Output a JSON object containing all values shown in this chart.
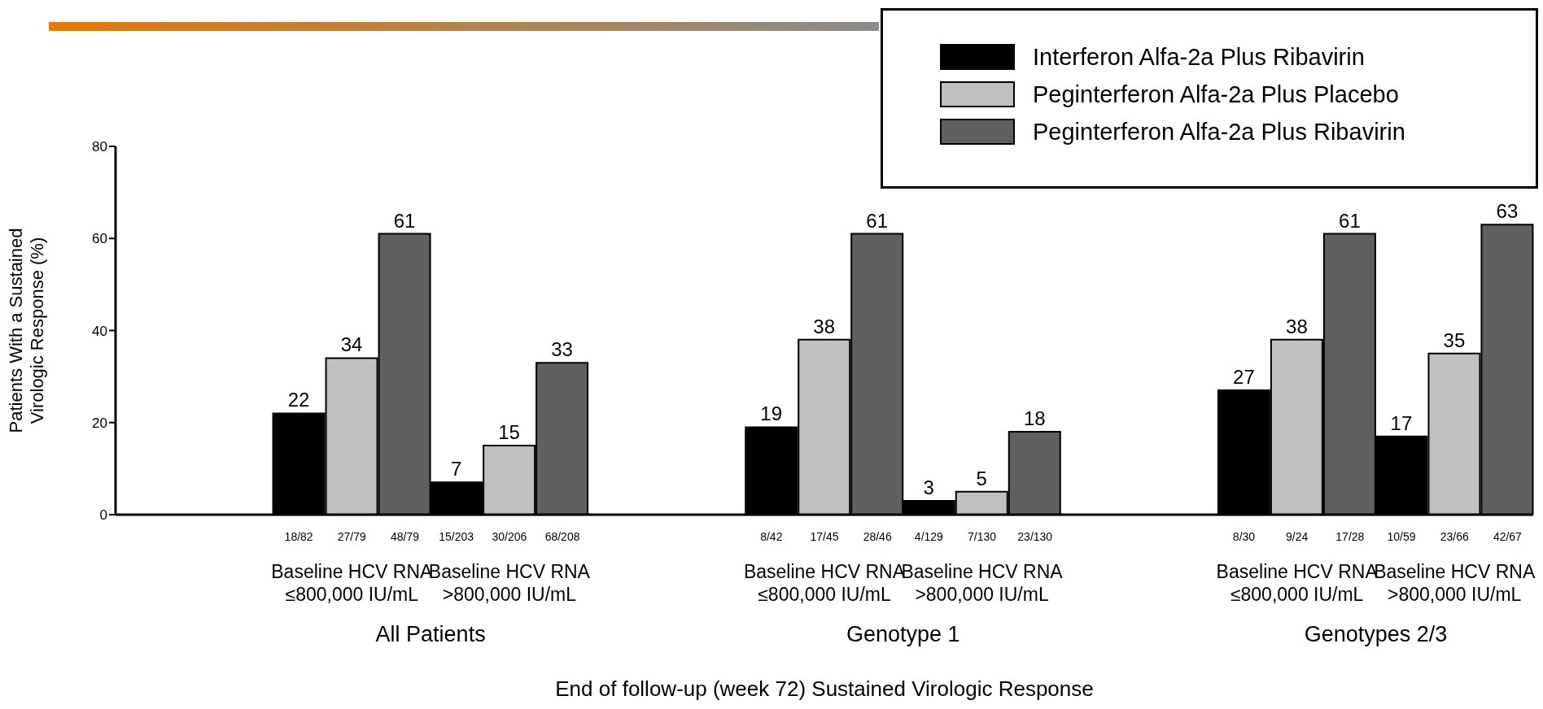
{
  "chart_data": {
    "type": "bar",
    "xlabel": "End of follow-up (week 72) Sustained Virologic Response",
    "ylabel": "Patients With a Sustained\nVirologic Response (%)",
    "categories": [
      null,
      "Baseline HCV RNA\n≤800,000 IU/mL",
      "Baseline HCV RNA\n>800,000 IU/mL",
      null,
      "Baseline HCV RNA\n≤800,000 IU/mL",
      "Baseline HCV RNA\n>800,000 IU/mL",
      null,
      "Baseline HCV RNA\n≤800,000 IU/mL",
      "Baseline HCV RNA\n>800,000 IU/mL"
    ],
    "series": [
      {
        "name": "Interferon Alfa-2a Plus Ribavirin",
        "color": "#000000",
        "values": [
          null,
          22,
          7,
          null,
          19,
          3,
          null,
          27,
          17
        ]
      },
      {
        "name": "Peginterferon Alfa-2a Plus Placebo",
        "color": "#c0c0c0",
        "values": [
          null,
          34,
          15,
          null,
          38,
          5,
          null,
          38,
          35
        ]
      },
      {
        "name": "Peginterferon Alfa-2a Plus Ribavirin",
        "color": "#606060",
        "values": [
          null,
          61,
          33,
          null,
          61,
          18,
          null,
          61,
          63
        ]
      }
    ],
    "annotations": [
      "18/82",
      "27/79",
      "48/79",
      "15/203",
      "30/206",
      "68/208",
      "8/42",
      "17/45",
      "28/46",
      "4/129",
      "7/130",
      "23/130",
      "8/30",
      "9/24",
      "17/28",
      "10/59",
      "23/66",
      "42/67",
      "All Patients",
      "Genotype 1",
      "Genotypes 2/3"
    ],
    "ylim": [
      0,
      80
    ],
    "yticks": [
      0,
      20,
      40,
      60,
      80
    ],
    "data_labels": true,
    "legend": "top right",
    "grid": false
  }
}
